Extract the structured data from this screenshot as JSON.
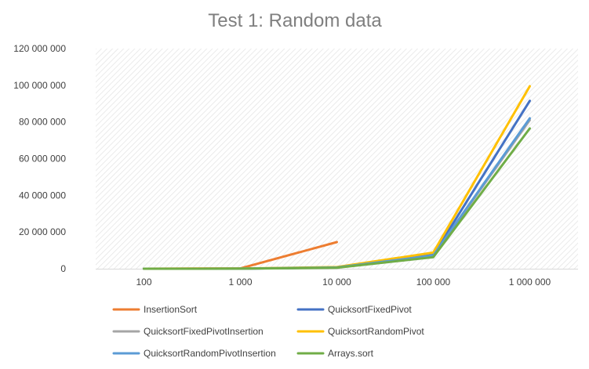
{
  "chart_data": {
    "type": "line",
    "title": "Test 1: Random data",
    "categories": [
      "100",
      "1 000",
      "10 000",
      "100 000",
      "1 000 000"
    ],
    "ylim": [
      0,
      120000000
    ],
    "yticks": [
      0,
      20000000,
      40000000,
      60000000,
      80000000,
      100000000,
      120000000
    ],
    "ytick_labels": [
      "0",
      "20 000 000",
      "40 000 000",
      "60 000 000",
      "80 000 000",
      "100 000 000",
      "120 000 000"
    ],
    "grid": "hatched plot background",
    "legend_position": "bottom",
    "series": [
      {
        "name": "InsertionSort",
        "color": "#ed7d31",
        "values": [
          10000,
          150000,
          14500000,
          null,
          null
        ]
      },
      {
        "name": "QuicksortFixedPivot",
        "color": "#4472c4",
        "values": [
          5000,
          60000,
          700000,
          7500000,
          91500000
        ]
      },
      {
        "name": "QuicksortFixedPivotInsertion",
        "color": "#a5a5a5",
        "values": [
          4000,
          55000,
          650000,
          7000000,
          81000000
        ]
      },
      {
        "name": "QuicksortRandomPivot",
        "color": "#ffc000",
        "values": [
          6000,
          70000,
          900000,
          8800000,
          99500000
        ]
      },
      {
        "name": "QuicksortRandomPivotInsertion",
        "color": "#5b9bd5",
        "values": [
          4500,
          58000,
          700000,
          7200000,
          82000000
        ]
      },
      {
        "name": "Arrays.sort",
        "color": "#70ad47",
        "values": [
          3000,
          40000,
          500000,
          6300000,
          76500000
        ]
      }
    ]
  }
}
